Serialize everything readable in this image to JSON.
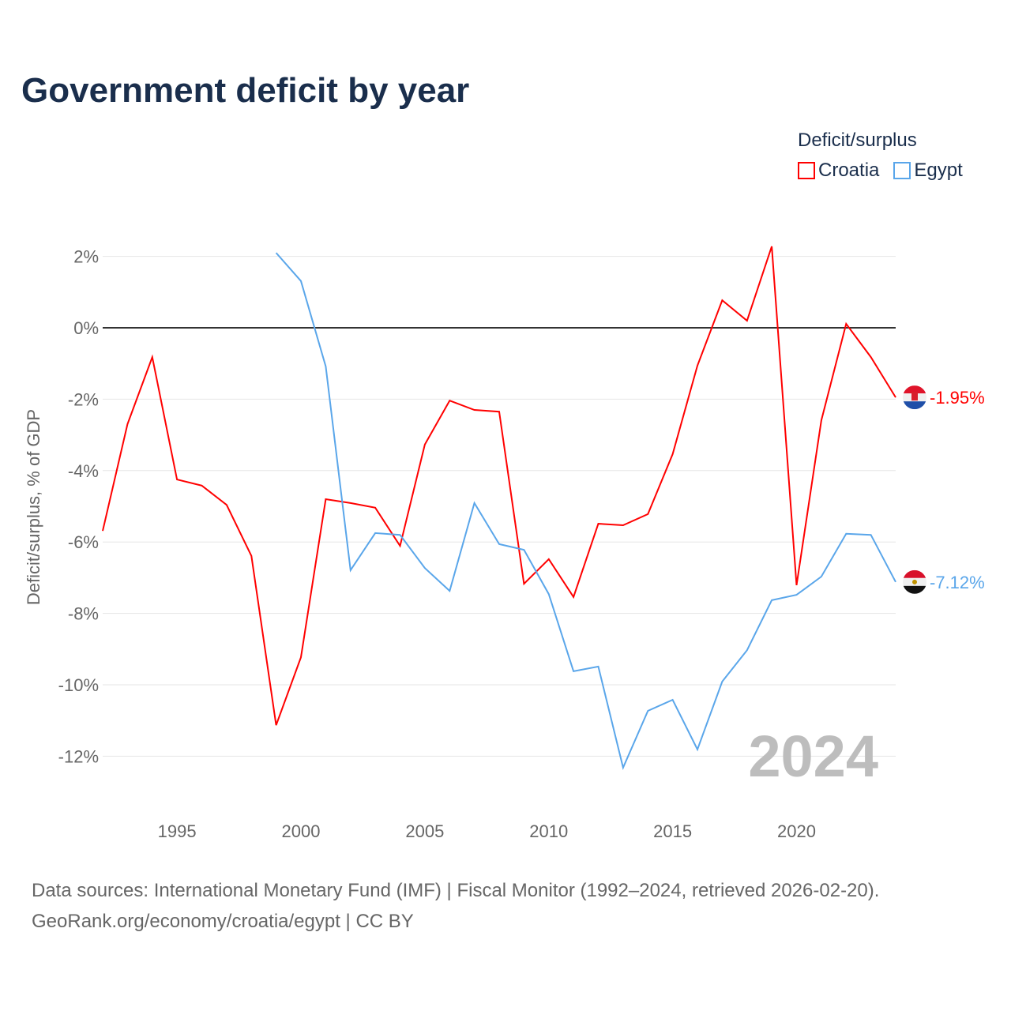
{
  "title": "Government deficit by year",
  "legend": {
    "title": "Deficit/surplus",
    "items": [
      {
        "label": "Croatia",
        "color": "#ff0000"
      },
      {
        "label": "Egypt",
        "color": "#5aa6ea"
      }
    ]
  },
  "source": {
    "line1": "Data sources: International Monetary Fund (IMF) | Fiscal Monitor (1992–2024, retrieved 2026-02-20).",
    "line2": "GeoRank.org/economy/croatia/egypt | CC BY"
  },
  "chart_data": {
    "type": "line",
    "title": "Government deficit by year",
    "xlabel": "",
    "ylabel": "Deficit/surplus, % of GDP",
    "xlim": [
      1992,
      2024
    ],
    "ylim": [
      -13,
      2.5
    ],
    "xticks": [
      1995,
      2000,
      2005,
      2010,
      2015,
      2020
    ],
    "yticks": [
      2,
      0,
      -2,
      -4,
      -6,
      -8,
      -10,
      -12
    ],
    "ytick_labels": [
      "2%",
      "0%",
      "-2%",
      "-4%",
      "-6%",
      "-8%",
      "-10%",
      "-12%"
    ],
    "year_label": "2024",
    "series": [
      {
        "name": "Croatia",
        "color": "#ff0000",
        "end_label": "-1.95%",
        "start_year": 1992,
        "values": [
          -5.69,
          -2.7,
          -0.82,
          -4.25,
          -4.42,
          -4.96,
          -6.39,
          -11.13,
          -9.23,
          -4.8,
          -4.91,
          -5.04,
          -6.11,
          -3.27,
          -2.04,
          -2.3,
          -2.35,
          -7.17,
          -6.48,
          -7.54,
          -5.49,
          -5.53,
          -5.22,
          -3.54,
          -1.06,
          0.77,
          0.2,
          2.28,
          -7.21,
          -2.59,
          0.11,
          -0.82,
          -1.95
        ]
      },
      {
        "name": "Egypt",
        "color": "#5aa6ea",
        "end_label": "-7.12%",
        "start_year": 1999,
        "values": [
          2.1,
          1.31,
          -1.08,
          -6.79,
          -5.75,
          -5.8,
          -6.73,
          -7.37,
          -4.91,
          -6.06,
          -6.22,
          -7.46,
          -9.62,
          -9.49,
          -12.32,
          -10.73,
          -10.42,
          -11.81,
          -9.91,
          -9.03,
          -7.63,
          -7.48,
          -6.97,
          -5.77,
          -5.8,
          -7.12
        ]
      }
    ]
  }
}
